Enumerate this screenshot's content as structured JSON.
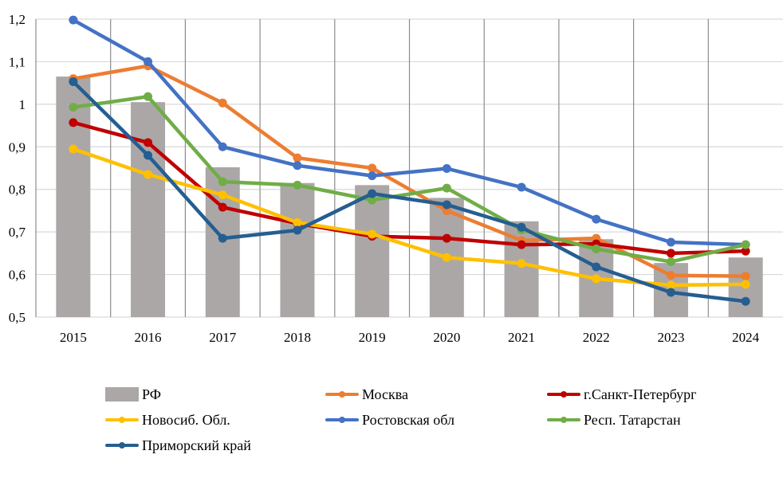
{
  "chart_data": {
    "type": "bar+line",
    "title": "",
    "xlabel": "",
    "ylabel": "",
    "categories": [
      "2015",
      "2016",
      "2017",
      "2018",
      "2019",
      "2020",
      "2021",
      "2022",
      "2023",
      "2024"
    ],
    "ylim": [
      0.5,
      1.2
    ],
    "yticks": [
      0.5,
      0.6,
      0.7,
      0.8,
      0.9,
      1.0,
      1.1,
      1.2
    ],
    "ytick_labels": [
      "0,5",
      "0,6",
      "0,7",
      "0,8",
      "0,9",
      "1",
      "1,1",
      "1,2"
    ],
    "grid": "both",
    "legend_position": "bottom",
    "series": [
      {
        "name": "РФ",
        "kind": "bar",
        "color": "#ABA7A7",
        "values": [
          1.065,
          1.005,
          0.852,
          0.815,
          0.81,
          0.78,
          0.725,
          0.683,
          0.627,
          0.64
        ]
      },
      {
        "name": "Москва",
        "kind": "line",
        "color": "#ED7D31",
        "values": [
          1.06,
          1.09,
          1.003,
          0.874,
          0.85,
          0.75,
          0.68,
          0.685,
          0.598,
          0.596
        ]
      },
      {
        "name": "г.Санкт-Петербург",
        "kind": "line",
        "color": "#C00000",
        "values": [
          0.957,
          0.91,
          0.758,
          0.72,
          0.69,
          0.685,
          0.67,
          0.672,
          0.65,
          0.655
        ]
      },
      {
        "name": "Новосиб. Обл.",
        "kind": "line",
        "color": "#FFC000",
        "values": [
          0.895,
          0.835,
          0.787,
          0.722,
          0.695,
          0.64,
          0.626,
          0.59,
          0.575,
          0.577
        ]
      },
      {
        "name": "Ростовская обл",
        "kind": "line",
        "color": "#4472C4",
        "values": [
          1.198,
          1.1,
          0.9,
          0.856,
          0.832,
          0.849,
          0.805,
          0.73,
          0.676,
          0.67
        ]
      },
      {
        "name": "Респ. Татарстан",
        "kind": "line",
        "color": "#70AD47",
        "values": [
          0.993,
          1.018,
          0.818,
          0.81,
          0.775,
          0.803,
          0.705,
          0.66,
          0.63,
          0.67
        ]
      },
      {
        "name": "Приморский край",
        "kind": "line",
        "color": "#255E91",
        "values": [
          1.053,
          0.88,
          0.685,
          0.704,
          0.79,
          0.764,
          0.711,
          0.618,
          0.558,
          0.537
        ]
      }
    ]
  }
}
